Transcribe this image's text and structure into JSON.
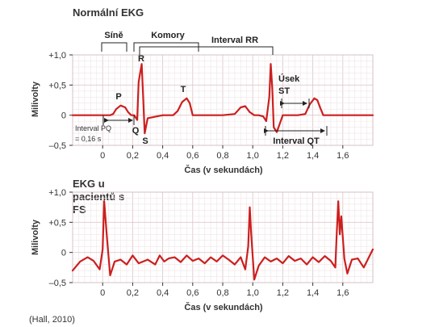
{
  "chart_data": [
    {
      "type": "line",
      "title": "Normální EKG",
      "xlabel": "Čas (v sekundách)",
      "ylabel": "Milivolty",
      "xlim": [
        -0.2,
        1.8
      ],
      "ylim": [
        -0.5,
        1.0
      ],
      "x_ticks": [
        0,
        0.2,
        0.4,
        0.6,
        0.8,
        1.0,
        1.2,
        1.4,
        1.6
      ],
      "x_tick_labels": [
        "0",
        "0,2",
        "0,4",
        "0,6",
        "0,8",
        "1,0",
        "1,2",
        "1,4",
        "1,6"
      ],
      "y_ticks": [
        1.0,
        0.5,
        0,
        -0.5
      ],
      "y_tick_labels": [
        "+1,0",
        "+0,5",
        "0",
        "–0,5"
      ],
      "grid": true,
      "series": [
        {
          "color": "#cc1f1f",
          "x": [
            -0.2,
            0.05,
            0.07,
            0.09,
            0.12,
            0.15,
            0.17,
            0.19,
            0.21,
            0.23,
            0.24,
            0.26,
            0.27,
            0.28,
            0.3,
            0.4,
            0.47,
            0.5,
            0.53,
            0.56,
            0.58,
            0.6,
            0.8,
            0.88,
            0.92,
            0.95,
            0.98,
            1.01,
            1.04,
            1.07,
            1.09,
            1.11,
            1.12,
            1.13,
            1.14,
            1.16,
            1.2,
            1.3,
            1.35,
            1.38,
            1.41,
            1.43,
            1.45,
            1.47,
            1.8
          ],
          "y": [
            0,
            0,
            0.02,
            0.1,
            0.16,
            0.13,
            0.05,
            0,
            0,
            -0.08,
            0.55,
            0.85,
            0.3,
            -0.3,
            -0.05,
            0,
            0,
            0.07,
            0.22,
            0.28,
            0.2,
            0,
            0,
            0.02,
            0.13,
            0.15,
            0.05,
            0,
            0,
            -0.02,
            -0.1,
            0.3,
            0.85,
            0.45,
            -0.2,
            -0.28,
            0,
            0,
            0.02,
            0.18,
            0.28,
            0.25,
            0.12,
            0,
            0
          ]
        }
      ],
      "annotations": {
        "atria": "Síně",
        "ventricles": "Komory",
        "rr_interval": "Interval RR",
        "p": "P",
        "q": "Q",
        "r": "R",
        "s": "S",
        "t": "T",
        "pq_interval": "Interval PQ",
        "pq_value": "= 0,16 s",
        "st_segment_1": "Úsek",
        "st_segment_2": "ST",
        "qt_interval": "Interval QT"
      }
    },
    {
      "type": "line",
      "title_lines": [
        "EKG u",
        "pacientů s",
        "FS"
      ],
      "xlabel": "Čas (v sekundách)",
      "ylabel": "Milivolty",
      "xlim": [
        -0.2,
        1.8
      ],
      "ylim": [
        -0.5,
        1.0
      ],
      "x_ticks": [
        0,
        0.2,
        0.4,
        0.6,
        0.8,
        1.0,
        1.2,
        1.4,
        1.6
      ],
      "x_tick_labels": [
        "0",
        "0,2",
        "0,4",
        "0,6",
        "0,8",
        "1,0",
        "1,2",
        "1,4",
        "1,6"
      ],
      "y_ticks": [
        1.0,
        0.5,
        0,
        -0.5
      ],
      "y_tick_labels": [
        "+1,0",
        "+0,5",
        "0",
        "–0,5"
      ],
      "grid": true,
      "series": [
        {
          "color": "#cc1f1f",
          "x": [
            -0.2,
            -0.15,
            -0.1,
            -0.06,
            -0.02,
            0,
            0.01,
            0.03,
            0.05,
            0.08,
            0.12,
            0.16,
            0.2,
            0.24,
            0.3,
            0.35,
            0.38,
            0.41,
            0.44,
            0.48,
            0.52,
            0.56,
            0.6,
            0.64,
            0.68,
            0.72,
            0.76,
            0.8,
            0.84,
            0.88,
            0.92,
            0.95,
            0.97,
            0.98,
            0.99,
            1.01,
            1.04,
            1.08,
            1.12,
            1.16,
            1.2,
            1.24,
            1.28,
            1.32,
            1.36,
            1.4,
            1.44,
            1.48,
            1.52,
            1.55,
            1.56,
            1.57,
            1.58,
            1.59,
            1.61,
            1.63,
            1.66,
            1.7,
            1.74,
            1.8
          ],
          "y": [
            -0.3,
            -0.15,
            -0.08,
            -0.14,
            -0.28,
            0.05,
            0.85,
            0.2,
            -0.38,
            -0.15,
            -0.12,
            -0.2,
            -0.05,
            -0.18,
            -0.12,
            -0.2,
            -0.05,
            -0.15,
            -0.1,
            -0.08,
            -0.16,
            -0.05,
            -0.14,
            -0.1,
            -0.18,
            -0.08,
            -0.15,
            -0.05,
            -0.12,
            -0.2,
            -0.08,
            -0.28,
            0.1,
            0.75,
            0.3,
            -0.45,
            -0.22,
            -0.08,
            -0.15,
            -0.1,
            -0.18,
            -0.06,
            -0.14,
            -0.1,
            -0.2,
            -0.08,
            -0.16,
            -0.06,
            -0.14,
            -0.25,
            0.35,
            0.85,
            0.3,
            0.6,
            -0.1,
            -0.35,
            -0.12,
            -0.1,
            -0.25,
            0.05
          ]
        }
      ]
    }
  ],
  "source_note": "(Hall, 2010)"
}
